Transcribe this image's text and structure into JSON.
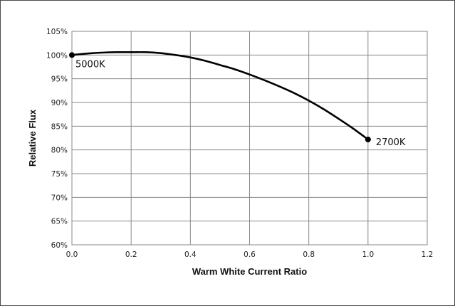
{
  "chart_data": {
    "type": "line",
    "title": "",
    "xlabel": "Warm White Current Ratio",
    "ylabel": "Relative Flux",
    "xlim": [
      0.0,
      1.2
    ],
    "ylim": [
      60,
      105
    ],
    "x_ticks": [
      "0.0",
      "0.2",
      "0.4",
      "0.6",
      "0.8",
      "1.0",
      "1.2"
    ],
    "y_ticks": [
      "60%",
      "65%",
      "70%",
      "75%",
      "80%",
      "85%",
      "90%",
      "95%",
      "100%",
      "105%"
    ],
    "grid": true,
    "legend": "none",
    "series": [
      {
        "x": [
          0.0,
          0.05,
          0.1,
          0.15,
          0.2,
          0.25,
          0.3,
          0.35,
          0.4,
          0.45,
          0.5,
          0.55,
          0.6,
          0.65,
          0.7,
          0.75,
          0.8,
          0.85,
          0.9,
          0.95,
          1.0
        ],
        "y": [
          100.0,
          100.3,
          100.5,
          100.6,
          100.6,
          100.6,
          100.4,
          100.0,
          99.5,
          98.8,
          97.9,
          97.0,
          95.9,
          94.7,
          93.4,
          92.0,
          90.4,
          88.6,
          86.6,
          84.5,
          82.2
        ],
        "color": "#000000"
      }
    ],
    "annotations": [
      {
        "text": "5000K",
        "x": 0.0,
        "y": 100.0
      },
      {
        "text": "2700K",
        "x": 1.0,
        "y": 82.2
      }
    ]
  }
}
